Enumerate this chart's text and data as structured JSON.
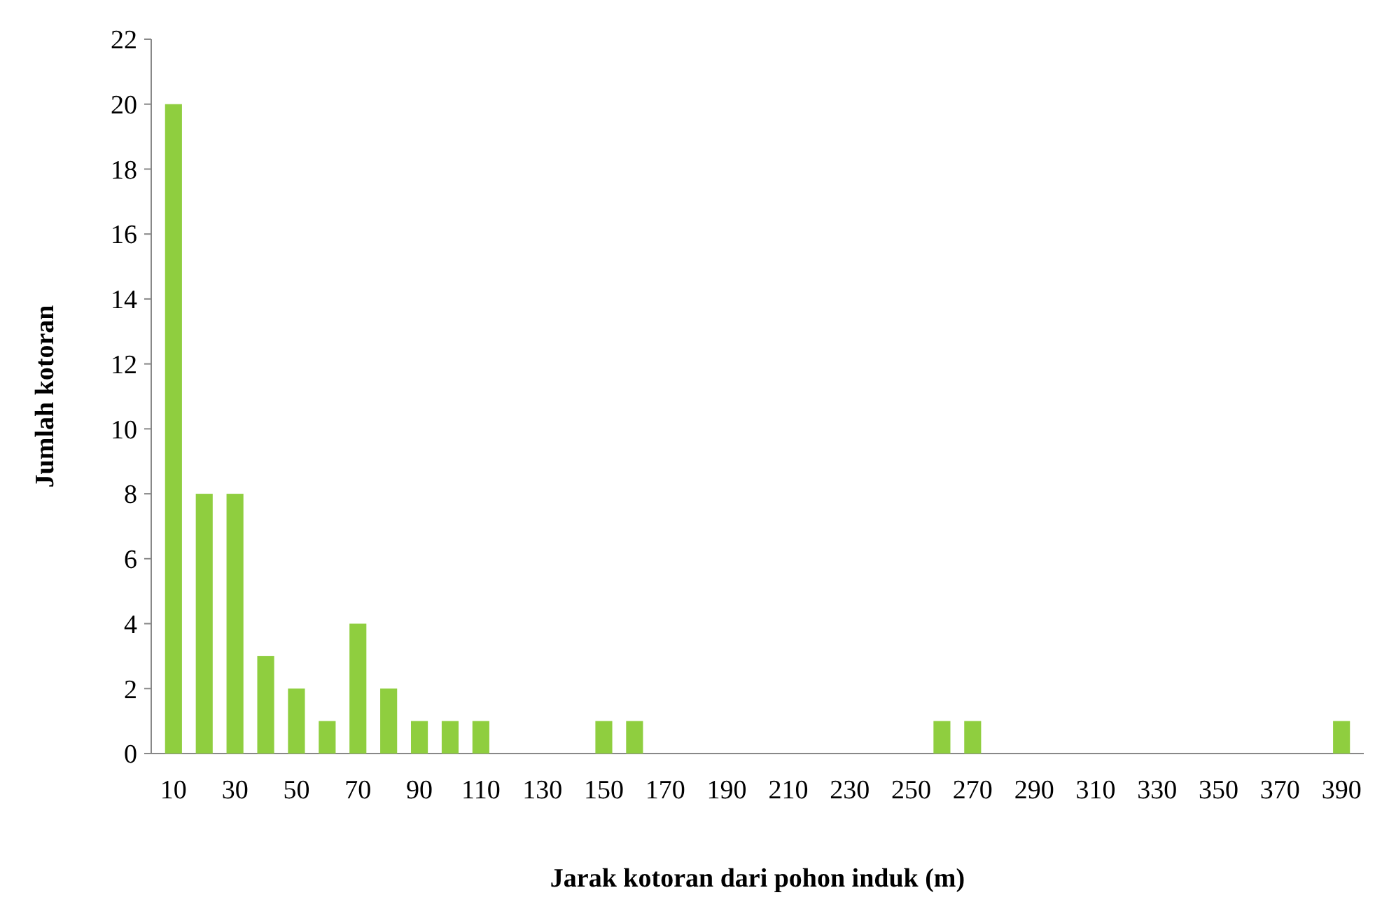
{
  "chart_data": {
    "type": "bar",
    "xlabel": "Jarak kotoran dari pohon induk (m)",
    "ylabel": "Jumlah kotoran",
    "categories": [
      "10",
      null,
      "30",
      null,
      "50",
      null,
      "70",
      null,
      "90",
      null,
      "110",
      null,
      "130",
      null,
      "150",
      null,
      "170",
      null,
      "190",
      null,
      "210",
      null,
      "230",
      null,
      "250",
      null,
      "270",
      null,
      "290",
      null,
      "310",
      null,
      "330",
      null,
      "350",
      null,
      "370",
      null,
      "390"
    ],
    "values": [
      20,
      8,
      8,
      3,
      2,
      1,
      4,
      2,
      1,
      1,
      1,
      0,
      0,
      0,
      1,
      1,
      0,
      0,
      0,
      0,
      0,
      0,
      0,
      0,
      0,
      1,
      1,
      0,
      0,
      0,
      0,
      0,
      0,
      0,
      0,
      0,
      0,
      0,
      1
    ],
    "color": "#8fce3f",
    "ylim": [
      0,
      22
    ],
    "yticks": [
      0,
      2,
      4,
      6,
      8,
      10,
      12,
      14,
      16,
      18,
      20,
      22
    ],
    "grid": false
  }
}
